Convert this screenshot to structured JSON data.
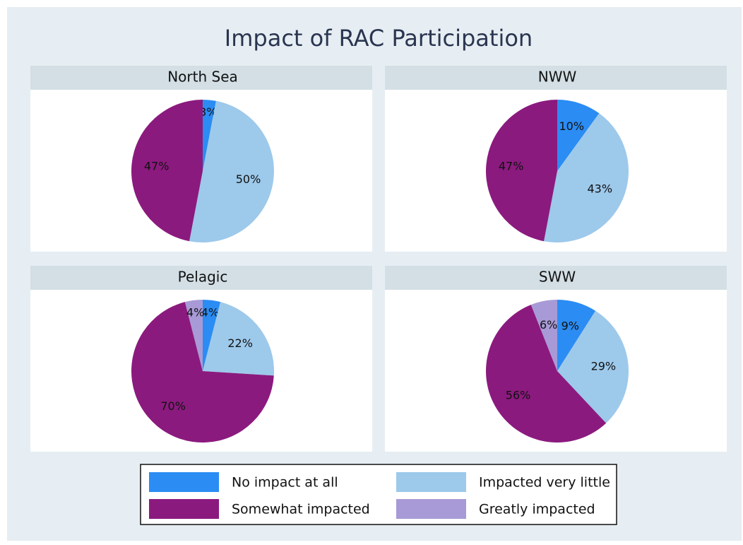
{
  "title": "Impact of RAC Participation",
  "legend": {
    "categories": [
      "No impact at all",
      "Impacted very little",
      "Somewhat impacted",
      "Greatly impacted"
    ],
    "colors": [
      "#2b8cf3",
      "#9dc9eb",
      "#8b1a7e",
      "#a89ad6"
    ]
  },
  "chart_data": [
    {
      "type": "pie",
      "title": "North Sea",
      "values": [
        3,
        50,
        47,
        null
      ],
      "value_labels": [
        "3%",
        "50%",
        "47%",
        null
      ]
    },
    {
      "type": "pie",
      "title": "NWW",
      "values": [
        10,
        43,
        47,
        null
      ],
      "value_labels": [
        "10%",
        "43%",
        "47%",
        null
      ]
    },
    {
      "type": "pie",
      "title": "Pelagic",
      "values": [
        4,
        22,
        70,
        4
      ],
      "value_labels": [
        "4%",
        "22%",
        "70%",
        "4%"
      ]
    },
    {
      "type": "pie",
      "title": "SWW",
      "values": [
        9,
        29,
        56,
        6
      ],
      "value_labels": [
        "9%",
        "29%",
        "56%",
        "6%"
      ]
    }
  ]
}
